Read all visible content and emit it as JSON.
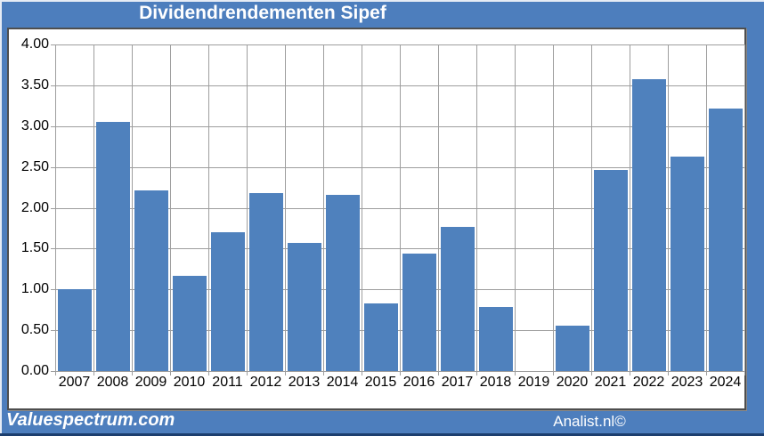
{
  "title": "Dividendrendementen Sipef",
  "footer": {
    "brand": "Valuespectrum.com",
    "credit": "Analist.nl©"
  },
  "colors": {
    "frame_blue": "#4d7ebd",
    "bar_blue": "#4f81bd",
    "grid_gray": "#9e9e9e",
    "panel_border": "#4e4e4e",
    "bottom_line": "#1c3e6e",
    "title_text": "#ffffff",
    "axis_text": "#000000"
  },
  "chart_data": {
    "type": "bar",
    "title": "Dividendrendementen Sipef",
    "categories": [
      "2007",
      "2008",
      "2009",
      "2010",
      "2011",
      "2012",
      "2013",
      "2014",
      "2015",
      "2016",
      "2017",
      "2018",
      "2019",
      "2020",
      "2021",
      "2022",
      "2023",
      "2024"
    ],
    "values": [
      1.0,
      3.05,
      2.21,
      1.17,
      1.7,
      2.18,
      1.57,
      2.16,
      0.83,
      1.44,
      1.77,
      0.78,
      null,
      0.56,
      2.46,
      3.57,
      2.63,
      3.22
    ],
    "xlabel": "",
    "ylabel": "",
    "ylim": [
      0,
      4
    ],
    "ytick_step": 0.5,
    "ytick_labels_desc": [
      "4.00",
      "3.50",
      "3.00",
      "2.50",
      "2.00",
      "1.50",
      "1.00",
      "0.50",
      "0.00"
    ],
    "grid": true,
    "legend": "none"
  }
}
